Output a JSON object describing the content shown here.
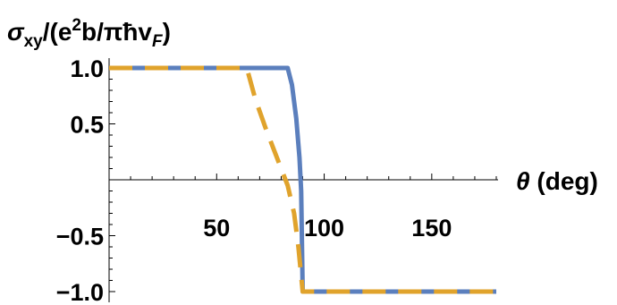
{
  "chart_data": {
    "type": "line",
    "ylabel": {
      "main": "σ",
      "sub": "xy",
      "rest1": "/(e",
      "sup": "2",
      "rest2": "b/πħv",
      "sub2": "F",
      "rest3": ")"
    },
    "xlabel": {
      "symbol": "θ",
      "unit": " (deg)"
    },
    "xlim": [
      0,
      180
    ],
    "ylim": [
      -1.08,
      1.08
    ],
    "x_ticks": [
      {
        "value": 50,
        "label": "50"
      },
      {
        "value": 100,
        "label": "100"
      },
      {
        "value": 150,
        "label": "150"
      }
    ],
    "y_ticks": [
      {
        "value": 1.0,
        "label": "1.0"
      },
      {
        "value": 0.5,
        "label": "0.5"
      },
      {
        "value": -0.5,
        "label": "−0.5"
      },
      {
        "value": -1.0,
        "label": "−1.0"
      }
    ],
    "series": [
      {
        "color": "#5b7fbd",
        "dash": "solid",
        "points": [
          [
            0,
            1.0
          ],
          [
            83,
            1.0
          ],
          [
            85,
            0.85
          ],
          [
            87,
            0.55
          ],
          [
            88.5,
            0.2
          ],
          [
            89.3,
            -0.1
          ],
          [
            90,
            -1.0
          ],
          [
            180,
            -1.0
          ]
        ]
      },
      {
        "color": "#e0a32c",
        "dash": "dashed",
        "points": [
          [
            0,
            1.0
          ],
          [
            64,
            1.0
          ],
          [
            68,
            0.72
          ],
          [
            73,
            0.45
          ],
          [
            78,
            0.2
          ],
          [
            83,
            -0.05
          ],
          [
            86,
            -0.3
          ],
          [
            88,
            -0.6
          ],
          [
            90,
            -1.0
          ],
          [
            180,
            -1.0
          ]
        ]
      }
    ],
    "grid": false,
    "legend": "none"
  }
}
